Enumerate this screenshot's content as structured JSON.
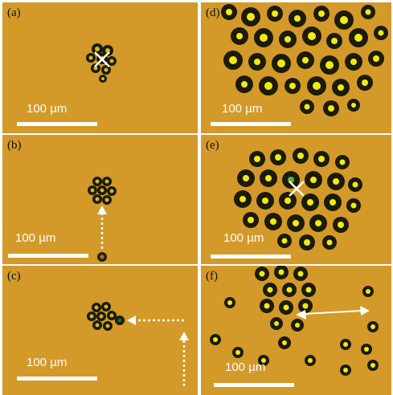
{
  "panels": {
    "a": {
      "label": "(a)",
      "scale": "100 µm"
    },
    "b": {
      "label": "(b)",
      "scale": "100 µm"
    },
    "c": {
      "label": "(c)",
      "scale": "100 µm"
    },
    "d": {
      "label": "(d)",
      "scale": "100 µm"
    },
    "e": {
      "label": "(e)",
      "scale": "100 µm"
    },
    "f": {
      "label": "(f)",
      "scale": "100 µm"
    }
  },
  "colors": {
    "background": "#d39a2a",
    "droplet_rim": "#1c1a08",
    "droplet_core": "#f2ea10",
    "arrow": "#ffffff"
  }
}
